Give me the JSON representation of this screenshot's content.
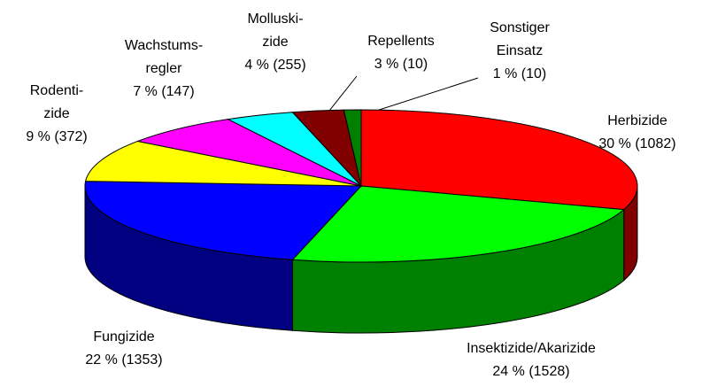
{
  "chart_data": {
    "type": "pie3d",
    "categories": [
      [
        "Herbizide"
      ],
      [
        "Insektizide/Akarizide"
      ],
      [
        "Fungizide"
      ],
      [
        "Rodenti-",
        "zide"
      ],
      [
        "Wachstums-",
        "regler"
      ],
      [
        "Molluski-",
        "zide"
      ],
      [
        "Repellents"
      ],
      [
        "Sonstiger",
        "Einsatz"
      ]
    ],
    "values": [
      30,
      24,
      22,
      9,
      7,
      4,
      3,
      1
    ],
    "value_labels": [
      "30 % (1082)",
      "24 % (1528)",
      "22 % (1353)",
      "9 % (372)",
      "7 % (147)",
      "4 % (255)",
      "3 % (10)",
      "1 % (10)"
    ],
    "colors": [
      "#ff0000",
      "#00ff00",
      "#0000ff",
      "#ffff00",
      "#ff00ff",
      "#00ffff",
      "#800000",
      "#008000"
    ]
  }
}
